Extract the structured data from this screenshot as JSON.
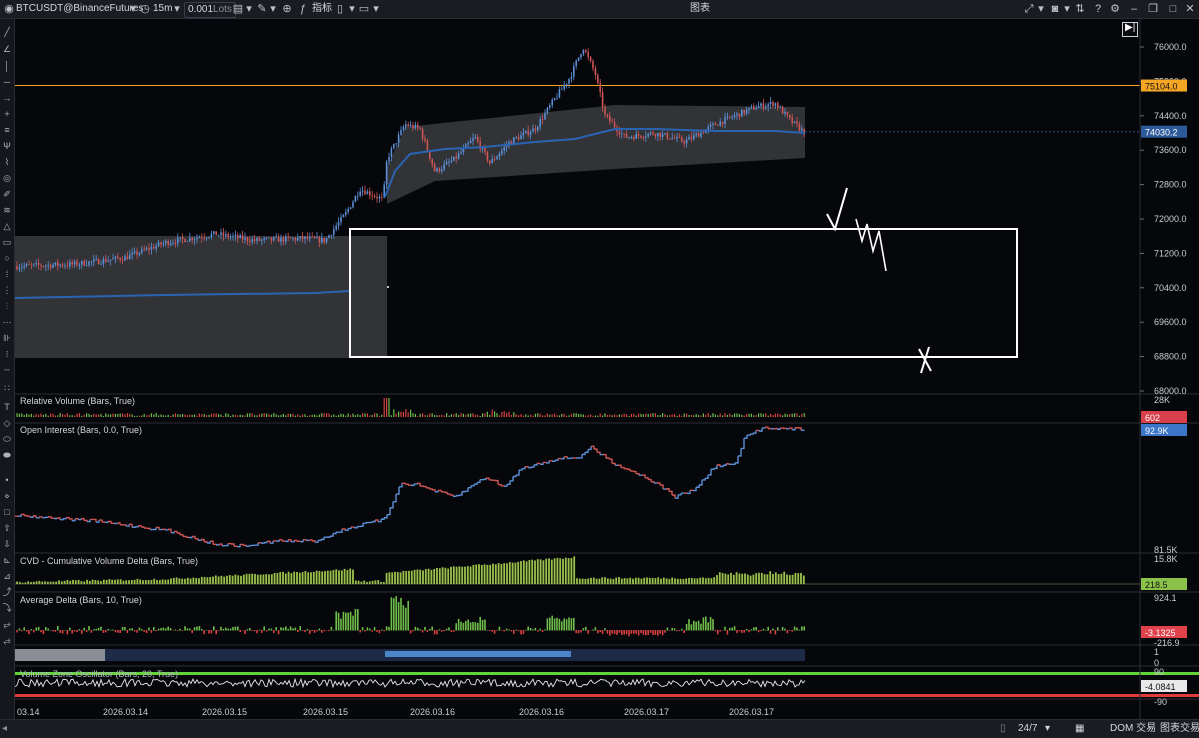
{
  "toolbar": {
    "symbol": "BTCUSDT@BinanceFutures",
    "timeframe": "15m",
    "lots": "0.001",
    "lots_unit": "Lots",
    "indicators_label": "指标",
    "center_title": "图表"
  },
  "price_axis": {
    "ticks": [
      "76000.0",
      "75200.0",
      "74400.0",
      "73600.0",
      "72800.0",
      "72000.0",
      "71200.0",
      "70400.0",
      "69600.0",
      "68800.0",
      "68000.0"
    ],
    "tick_values": [
      76000,
      75200,
      74400,
      73600,
      72800,
      72000,
      71200,
      70400,
      69600,
      68800,
      68000
    ],
    "orange_level": "75104.0",
    "orange_value": 75104,
    "last_price": "74030.2",
    "last_value": 74030.2,
    "orange_color": "#f5a623",
    "last_color": "#2d5a9a"
  },
  "panels": {
    "relvol": {
      "title": "Relative Volume (Bars, True)",
      "top_label": "28K",
      "badge": "602",
      "badge_color": "#d7404b"
    },
    "oi": {
      "title": "Open Interest (Bars, 0.0, True)",
      "badge": "92.9K",
      "badge_color": "#3c76c9",
      "bottom_label": "81.5K"
    },
    "cvd": {
      "title": "CVD - Cumulative Volume Delta (Bars, True)",
      "top_label": "15.8K",
      "badge": "218.5",
      "badge_color": "#8bc34a"
    },
    "avgdelta": {
      "title": "Average Delta (Bars, 10, True)",
      "top_label": "924.1",
      "badge": "-3.1325",
      "badge_color": "#e0414b",
      "bottom_label": "-216.9"
    },
    "strip": {
      "labels": [
        "1",
        "0"
      ]
    },
    "vzo": {
      "title": "Volume Zone Oscillator (Bars, 20, True)",
      "top_label": "90",
      "badge": "-4.0841",
      "bottom_label": "-90"
    }
  },
  "time_axis": {
    "labels": [
      "03.14",
      "2026.03.14",
      "2026.03.15",
      "2026.03.15",
      "2026.03.16",
      "2026.03.16",
      "2026.03.17",
      "2026.03.17"
    ]
  },
  "bottom_bar": {
    "session": "24/7",
    "dom_label": "DOM 交易",
    "chart_trade_label": "图表交易"
  },
  "annotations": {
    "check_label": "√",
    "cross_label": "X"
  },
  "colors": {
    "up": "#5b8fd6",
    "down": "#d05555",
    "green_hist": "#6fbf4a",
    "red_hist": "#d94040",
    "cvd_bar": "#9bc24a",
    "vwap": "#2b63b3",
    "band": "#3a3b40"
  }
}
